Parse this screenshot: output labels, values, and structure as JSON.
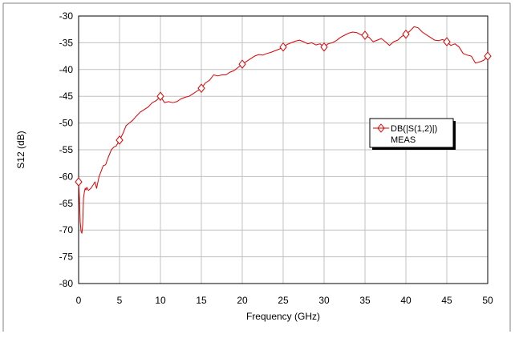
{
  "chart_data": {
    "type": "line",
    "xlabel": "Frequency (GHz)",
    "ylabel": "S12 (dB)",
    "xlim": [
      0,
      50
    ],
    "ylim": [
      -80,
      -30
    ],
    "xticks": [
      0,
      5,
      10,
      15,
      20,
      25,
      30,
      35,
      40,
      45,
      50
    ],
    "yticks": [
      -30,
      -35,
      -40,
      -45,
      -50,
      -55,
      -60,
      -65,
      -70,
      -75,
      -80
    ],
    "grid": true,
    "legend_position": "right",
    "legend": {
      "entries": [
        {
          "label": "DB(|S(1,2)|)",
          "sublabel": "MEAS"
        }
      ]
    },
    "series": [
      {
        "color": "#e00000",
        "marker": "diamond",
        "marker_x": [
          0,
          5,
          10,
          15,
          20,
          25,
          30,
          35,
          40,
          45,
          50
        ],
        "x": [
          0,
          0.1,
          0.2,
          0.3,
          0.4,
          0.5,
          0.6,
          0.7,
          0.8,
          0.9,
          1.0,
          1.2,
          1.5,
          1.8,
          2.0,
          2.2,
          2.5,
          2.8,
          3.0,
          3.3,
          3.6,
          4.0,
          4.3,
          4.6,
          5.0,
          5.4,
          5.8,
          6.2,
          6.6,
          7.0,
          7.5,
          8.0,
          8.5,
          9.0,
          9.5,
          10.0,
          10.5,
          11.0,
          11.5,
          12.0,
          12.5,
          13.0,
          13.5,
          14.0,
          14.5,
          15.0,
          15.5,
          16.0,
          16.5,
          17.0,
          17.5,
          18.0,
          18.5,
          19.0,
          19.5,
          20.0,
          20.5,
          21.0,
          21.5,
          22.0,
          22.5,
          23.0,
          23.5,
          24.0,
          24.5,
          25.0,
          25.5,
          26.0,
          26.5,
          27.0,
          27.5,
          28.0,
          28.5,
          29.0,
          29.5,
          30.0,
          30.5,
          31.0,
          31.5,
          32.0,
          32.5,
          33.0,
          33.5,
          34.0,
          34.5,
          35.0,
          35.5,
          36.0,
          36.5,
          37.0,
          37.5,
          38.0,
          38.5,
          39.0,
          39.5,
          40.0,
          40.5,
          41.0,
          41.5,
          42.0,
          42.5,
          43.0,
          43.5,
          44.0,
          44.5,
          45.0,
          45.5,
          46.0,
          46.5,
          47.0,
          47.5,
          48.0,
          48.5,
          49.0,
          49.5,
          50.0
        ],
        "y": [
          -61.0,
          -64.0,
          -68.5,
          -70.3,
          -70.6,
          -69.0,
          -64.0,
          -63.0,
          -62.2,
          -62.5,
          -62.0,
          -62.6,
          -62.2,
          -61.5,
          -61.0,
          -62.2,
          -60.0,
          -58.8,
          -58.0,
          -57.8,
          -56.5,
          -55.0,
          -54.5,
          -54.3,
          -53.2,
          -52.0,
          -50.5,
          -50.0,
          -49.5,
          -48.8,
          -48.0,
          -47.5,
          -47.0,
          -46.2,
          -45.8,
          -45.0,
          -46.2,
          -46.0,
          -46.2,
          -46.0,
          -45.5,
          -45.2,
          -45.0,
          -44.5,
          -44.0,
          -43.5,
          -42.5,
          -42.0,
          -41.0,
          -41.2,
          -41.0,
          -41.0,
          -40.5,
          -40.2,
          -39.6,
          -39.0,
          -38.5,
          -38.0,
          -37.5,
          -37.2,
          -37.3,
          -37.0,
          -36.8,
          -36.5,
          -36.2,
          -35.8,
          -35.3,
          -35.0,
          -34.7,
          -34.5,
          -34.8,
          -35.2,
          -35.0,
          -35.4,
          -35.2,
          -35.8,
          -35.2,
          -35.0,
          -34.6,
          -34.0,
          -33.6,
          -33.2,
          -33.0,
          -33.1,
          -33.5,
          -33.6,
          -34.0,
          -34.8,
          -34.5,
          -34.2,
          -34.8,
          -35.5,
          -34.8,
          -34.5,
          -33.8,
          -33.4,
          -32.8,
          -32.0,
          -32.2,
          -33.0,
          -33.5,
          -34.0,
          -34.5,
          -34.6,
          -34.4,
          -34.8,
          -35.5,
          -35.2,
          -35.8,
          -37.0,
          -37.3,
          -37.5,
          -38.8,
          -38.6,
          -38.3,
          -37.5
        ]
      }
    ]
  }
}
